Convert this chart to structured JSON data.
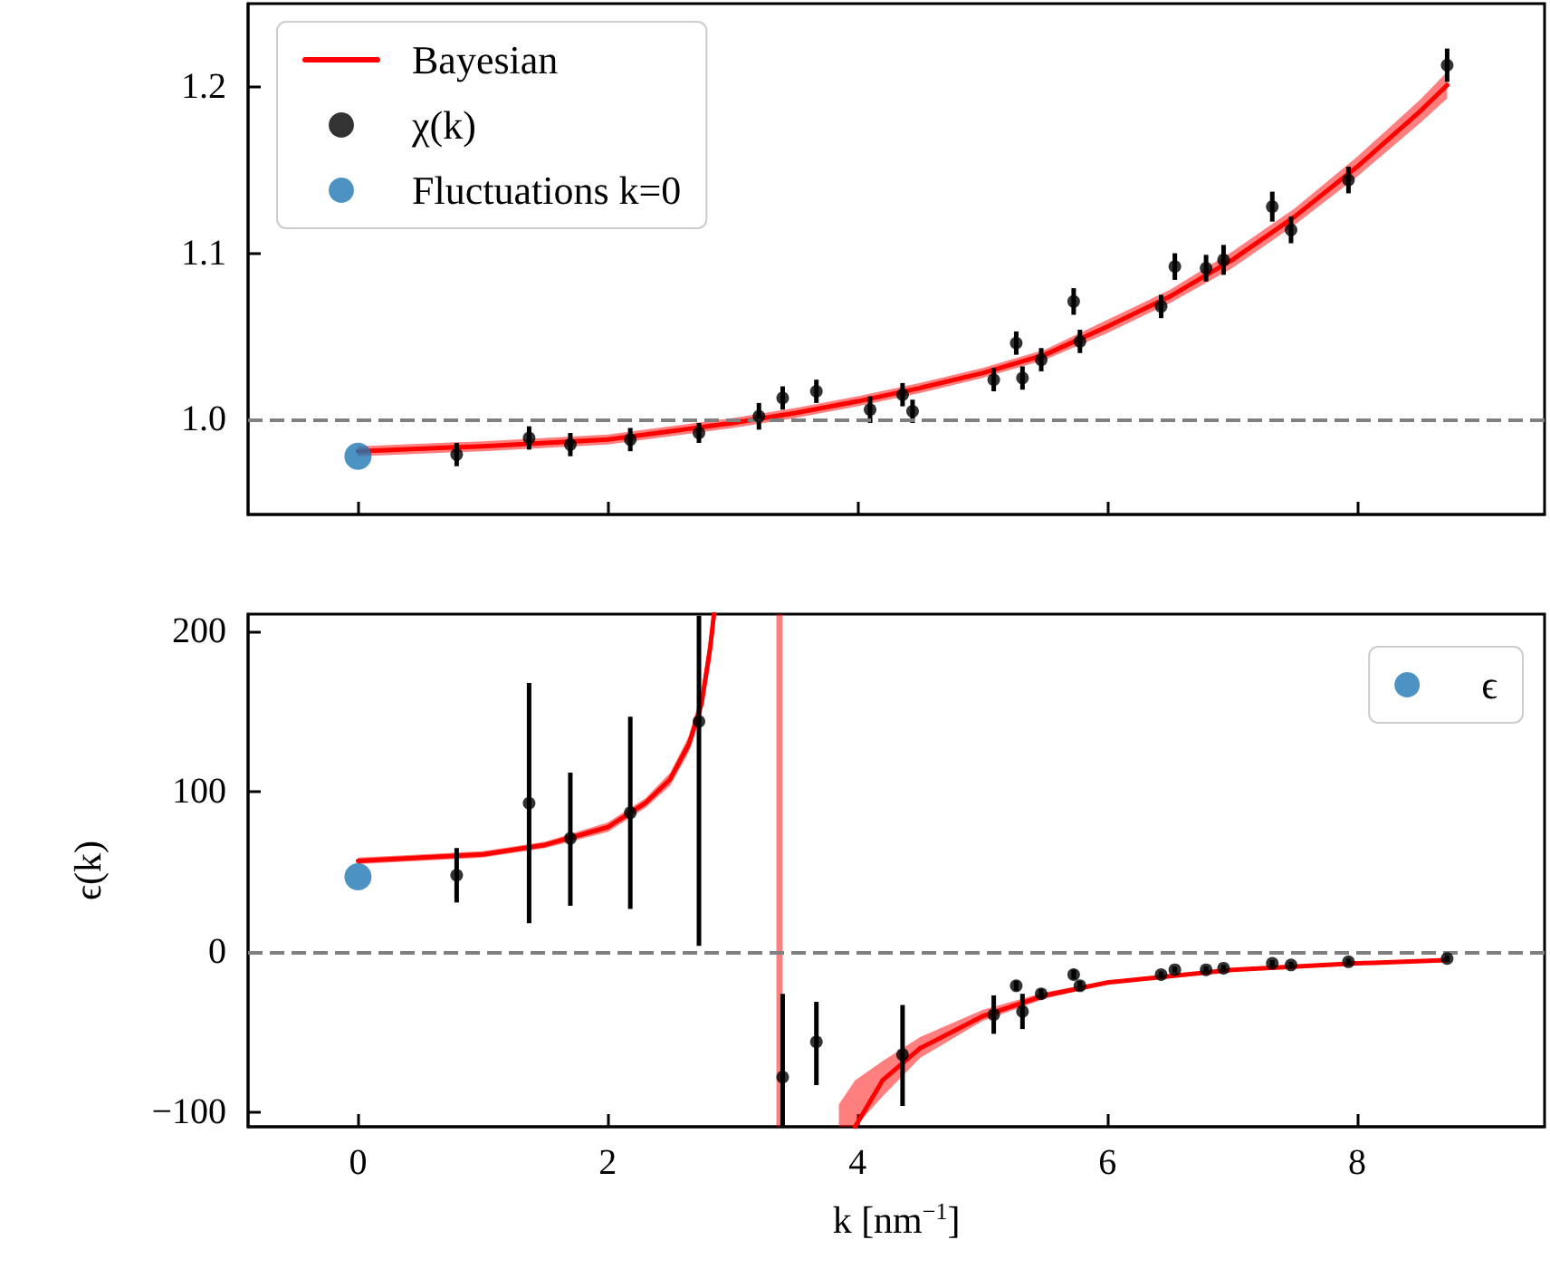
{
  "chart_data": [
    {
      "type": "scatter",
      "xlim": [
        -0.88,
        9.5
      ],
      "xticks": [
        0,
        2,
        4,
        6,
        8
      ],
      "ylim": [
        0.943,
        1.25
      ],
      "yticks": [
        {
          "value": 1,
          "label": "1.0"
        },
        {
          "value": 1.1,
          "label": "1.1"
        },
        {
          "value": 1.2,
          "label": "1.2"
        }
      ],
      "tick_labels": "y",
      "grid": false,
      "legend": "top left",
      "ref_lines": [
        {
          "axis": "y",
          "value": 1,
          "color": "#808080",
          "line_style": "dashed"
        }
      ],
      "series": [
        {
          "type": "line",
          "name": "Bayesian",
          "color": "#ff0000",
          "line_style": "solid",
          "x": [
            0,
            1,
            2,
            3,
            3.5,
            4,
            4.5,
            5,
            5.5,
            6,
            6.5,
            7,
            7.5,
            8,
            8.5,
            8.72
          ],
          "values": [
            0.981,
            0.984,
            0.988,
            0.998,
            1.004,
            1.011,
            1.019,
            1.028,
            1.039,
            1.056,
            1.074,
            1.096,
            1.122,
            1.152,
            1.185,
            1.201
          ],
          "lower": [
            0.978,
            0.981,
            0.985,
            0.995,
            1.001,
            1.008,
            1.016,
            1.025,
            1.036,
            1.052,
            1.07,
            1.091,
            1.117,
            1.146,
            1.178,
            1.193
          ],
          "upper": [
            0.984,
            0.987,
            0.991,
            1.001,
            1.007,
            1.014,
            1.022,
            1.031,
            1.042,
            1.06,
            1.078,
            1.101,
            1.127,
            1.158,
            1.192,
            1.209
          ]
        },
        {
          "name": "χ(k)",
          "color": "#000000",
          "marker": "circle",
          "x": [
            0.79,
            1.37,
            1.7,
            2.18,
            2.73,
            3.21,
            3.4,
            3.67,
            4.1,
            4.36,
            4.44,
            5.09,
            5.27,
            5.32,
            5.47,
            5.73,
            5.78,
            6.43,
            6.54,
            6.79,
            6.93,
            7.32,
            7.47,
            7.93,
            8.72
          ],
          "values": [
            0.979,
            0.989,
            0.985,
            0.988,
            0.992,
            1.002,
            1.013,
            1.017,
            1.006,
            1.015,
            1.005,
            1.024,
            1.046,
            1.025,
            1.036,
            1.071,
            1.047,
            1.068,
            1.092,
            1.091,
            1.096,
            1.128,
            1.114,
            1.144,
            1.213
          ],
          "errors": [
            0.007,
            0.007,
            0.007,
            0.007,
            0.006,
            0.008,
            0.007,
            0.007,
            0.008,
            0.007,
            0.007,
            0.007,
            0.007,
            0.007,
            0.007,
            0.008,
            0.007,
            0.007,
            0.008,
            0.008,
            0.009,
            0.009,
            0.008,
            0.008,
            0.01
          ]
        },
        {
          "name": "Fluctuations k=0",
          "color": "#1f77b4",
          "marker": "circle",
          "x": [
            0
          ],
          "values": [
            0.978
          ]
        }
      ]
    },
    {
      "type": "scatter",
      "xlabel": "k [nm$^{−1}$]",
      "ylabel": "ϵ(k)",
      "xlim": [
        -0.88,
        9.5
      ],
      "xticks": [
        0,
        2,
        4,
        6,
        8
      ],
      "ylim": [
        -109,
        211
      ],
      "yticks": [
        {
          "value": -100,
          "label": "−100"
        },
        0,
        100,
        200
      ],
      "grid": false,
      "legend": "top right",
      "ref_lines": [
        {
          "axis": "y",
          "value": 0,
          "color": "#808080",
          "line_style": "dashed"
        }
      ],
      "series": [
        {
          "type": "line",
          "color": "#ff0000",
          "line_style": "solid",
          "x": [
            0,
            1,
            1.5,
            2,
            2.3,
            2.5,
            2.65,
            2.75,
            2.82,
            2.85,
            3.0,
            3.35,
            3.4,
            3.72,
            3.85,
            3.98,
            4.2,
            4.5,
            5,
            5.5,
            6,
            7,
            8,
            8.72
          ],
          "values": [
            57,
            61,
            67,
            78,
            93,
            108,
            130,
            155,
            190,
            211,
            null,
            null,
            null,
            null,
            null,
            -109,
            -80,
            -60,
            -40,
            -27,
            -19,
            -11,
            -7,
            -5
          ],
          "lower": [
            55,
            59,
            65,
            75,
            90,
            104,
            125,
            148,
            180,
            200,
            null,
            -109,
            -109,
            null,
            -109,
            -109,
            -90,
            -66,
            -43,
            -29,
            -20,
            -12,
            -8,
            -6
          ],
          "upper": [
            59,
            63,
            69,
            81,
            96,
            112,
            135,
            162,
            200,
            211,
            null,
            211,
            211,
            null,
            -95,
            -80,
            -68,
            -53,
            -36,
            -25,
            -18,
            -10,
            -6,
            -4
          ]
        },
        {
          "color": "#000000",
          "marker": "circle",
          "x": [
            0.79,
            1.37,
            1.7,
            2.18,
            2.73,
            3.4,
            3.67,
            4.36,
            5.09,
            5.27,
            5.32,
            5.47,
            5.73,
            5.78,
            6.43,
            6.54,
            6.79,
            6.93,
            7.32,
            7.47,
            7.93,
            8.72
          ],
          "values": [
            48,
            93,
            71,
            87,
            144,
            -78,
            -56,
            -64,
            -39,
            -21,
            -37,
            -26,
            -14,
            -21,
            -14,
            -11,
            -11,
            -10,
            -7,
            -8,
            -6,
            -4
          ],
          "errors": [
            17,
            [
              18,
              168
            ],
            [
              29,
              112
            ],
            [
              27,
              147
            ],
            [
              4,
              210
            ],
            [
              -109,
              -26
            ],
            [
              -83,
              -31
            ],
            [
              -96,
              -33
            ],
            12,
            3,
            11,
            3,
            3,
            3,
            2,
            2,
            2,
            2,
            2,
            2,
            2,
            2
          ]
        },
        {
          "name": "ϵ",
          "color": "#1f77b4",
          "marker": "circle",
          "x": [
            0
          ],
          "values": [
            47
          ]
        }
      ]
    }
  ]
}
